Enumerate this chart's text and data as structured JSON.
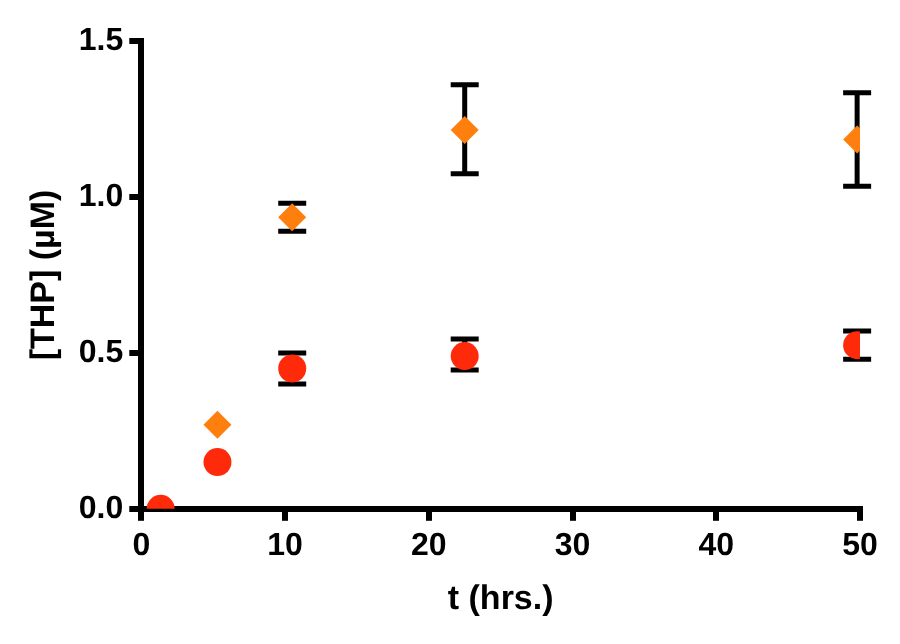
{
  "chart_data": {
    "type": "scatter",
    "xlabel": "t (hrs.)",
    "ylabel": "[THP] (µM)",
    "xlim": [
      0,
      50
    ],
    "xticks": [
      0,
      10,
      20,
      30,
      40,
      50
    ],
    "ylim": [
      0,
      1.5
    ],
    "yticks": [
      {
        "value": 0,
        "label": "0.0"
      },
      {
        "value": 0.5,
        "label": "0.5"
      },
      {
        "value": 1,
        "label": "1.0"
      },
      {
        "value": 1.5,
        "label": "1.5"
      }
    ],
    "grid": false,
    "legend": false,
    "series": [
      {
        "color": "#ff7f0e",
        "marker": "diamond",
        "x": [
          5.3,
          10.5,
          22.5,
          49.8
        ],
        "values": [
          0.27,
          0.935,
          1.215,
          1.185
        ],
        "errors": [
          null,
          [
            0.89,
            0.98
          ],
          [
            1.075,
            1.36
          ],
          [
            1.035,
            1.335
          ]
        ]
      },
      {
        "color": "#ff2a0a",
        "marker": "circle",
        "x": [
          1.35,
          5.3,
          10.5,
          22.5,
          49.8
        ],
        "values": [
          0,
          0.15,
          0.45,
          0.49,
          0.525
        ],
        "errors": [
          null,
          null,
          [
            0.4,
            0.5
          ],
          [
            0.445,
            0.545
          ],
          [
            0.48,
            0.57
          ]
        ]
      }
    ]
  }
}
